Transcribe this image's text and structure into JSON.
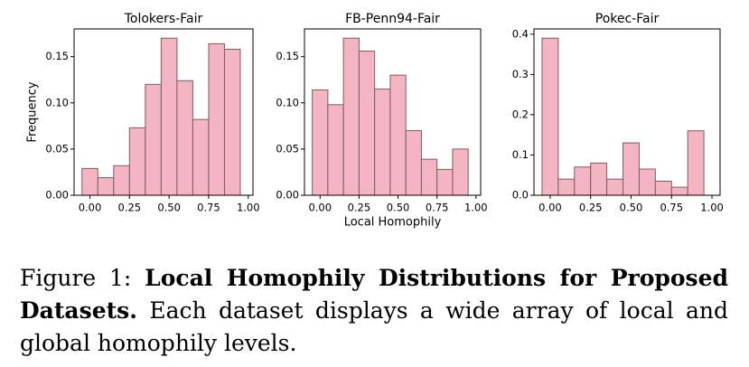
{
  "chart_data": [
    {
      "type": "histogram",
      "title": "Tolokers-Fair",
      "ylabel": "Frequency",
      "bins": [
        -0.05,
        0.05,
        0.15,
        0.25,
        0.35,
        0.45,
        0.55,
        0.65,
        0.75,
        0.85,
        0.95
      ],
      "values": [
        0.029,
        0.019,
        0.032,
        0.073,
        0.12,
        0.17,
        0.124,
        0.082,
        0.164,
        0.158
      ],
      "color": "#f2b5c1",
      "edgecolor": "#7b5d63",
      "xlim": [
        -0.1,
        1.03
      ],
      "ylim": [
        0,
        0.18
      ],
      "xticks": [
        {
          "value": 0,
          "label": "0.00"
        },
        0.25,
        {
          "value": 0.5,
          "label": "0.50"
        },
        0.75,
        {
          "value": 1,
          "label": "1.00"
        }
      ],
      "yticks": [
        {
          "value": 0,
          "label": "0.00"
        },
        0.05,
        {
          "value": 0.1,
          "label": "0.10"
        },
        0.15
      ]
    },
    {
      "type": "histogram",
      "title": "FB-Penn94-Fair",
      "xlabel": "Local Homophily",
      "bins": [
        -0.05,
        0.05,
        0.15,
        0.25,
        0.35,
        0.45,
        0.55,
        0.65,
        0.75,
        0.85,
        0.95
      ],
      "values": [
        0.114,
        0.098,
        0.17,
        0.156,
        0.115,
        0.13,
        0.07,
        0.039,
        0.028,
        0.05
      ],
      "color": "#f2b5c1",
      "edgecolor": "#7b5d63",
      "xlim": [
        -0.1,
        1.03
      ],
      "ylim": [
        0,
        0.18
      ],
      "xticks": [
        {
          "value": 0,
          "label": "0.00"
        },
        0.25,
        {
          "value": 0.5,
          "label": "0.50"
        },
        0.75,
        {
          "value": 1,
          "label": "1.00"
        }
      ],
      "yticks": [
        {
          "value": 0,
          "label": "0.00"
        },
        0.05,
        {
          "value": 0.1,
          "label": "0.10"
        },
        0.15
      ]
    },
    {
      "type": "histogram",
      "title": "Pokec-Fair",
      "bins": [
        -0.05,
        0.05,
        0.15,
        0.25,
        0.35,
        0.45,
        0.55,
        0.65,
        0.75,
        0.85,
        0.95
      ],
      "values": [
        0.39,
        0.04,
        0.07,
        0.08,
        0.04,
        0.13,
        0.065,
        0.035,
        0.02,
        0.16
      ],
      "color": "#f2b5c1",
      "edgecolor": "#7b5d63",
      "xlim": [
        -0.1,
        1.05
      ],
      "ylim": [
        0,
        0.413
      ],
      "xticks": [
        {
          "value": 0,
          "label": "0.00"
        },
        0.25,
        {
          "value": 0.5,
          "label": "0.50"
        },
        0.75,
        {
          "value": 1,
          "label": "1.00"
        }
      ],
      "yticks": [
        {
          "value": 0,
          "label": "0.0"
        },
        0.1,
        0.2,
        0.3,
        0.4
      ]
    }
  ],
  "caption": {
    "label": "Figure 1:",
    "bold": "Local Homophily Distributions for Proposed Datasets.",
    "text": "Each dataset displays a wide array of local and global homophily levels."
  }
}
